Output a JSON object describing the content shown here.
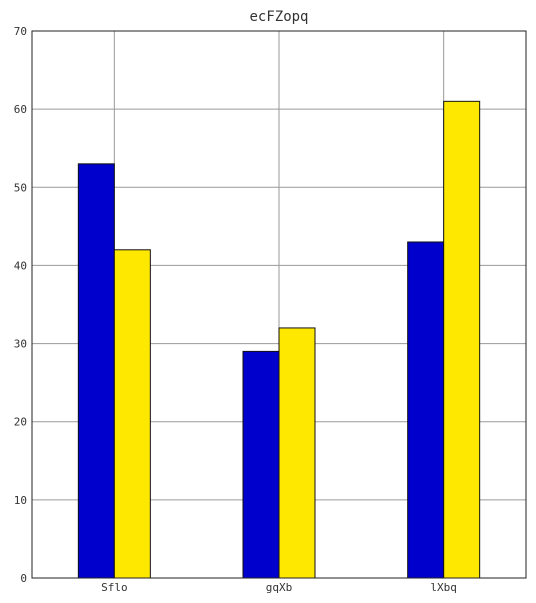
{
  "chart_data": {
    "type": "bar",
    "title": "ecFZopq",
    "xlabel": "",
    "ylabel": "",
    "categories": [
      "Sflo",
      "gqXb",
      "lXbq"
    ],
    "series": [
      {
        "values": [
          53,
          29,
          43
        ],
        "color": "#0000cc"
      },
      {
        "values": [
          42,
          32,
          61
        ],
        "color": "#ffe800"
      }
    ],
    "ylim": [
      0,
      70
    ],
    "yticks": [
      0,
      10,
      20,
      30,
      40,
      50,
      60,
      70
    ],
    "grid": true,
    "legend": "none"
  }
}
